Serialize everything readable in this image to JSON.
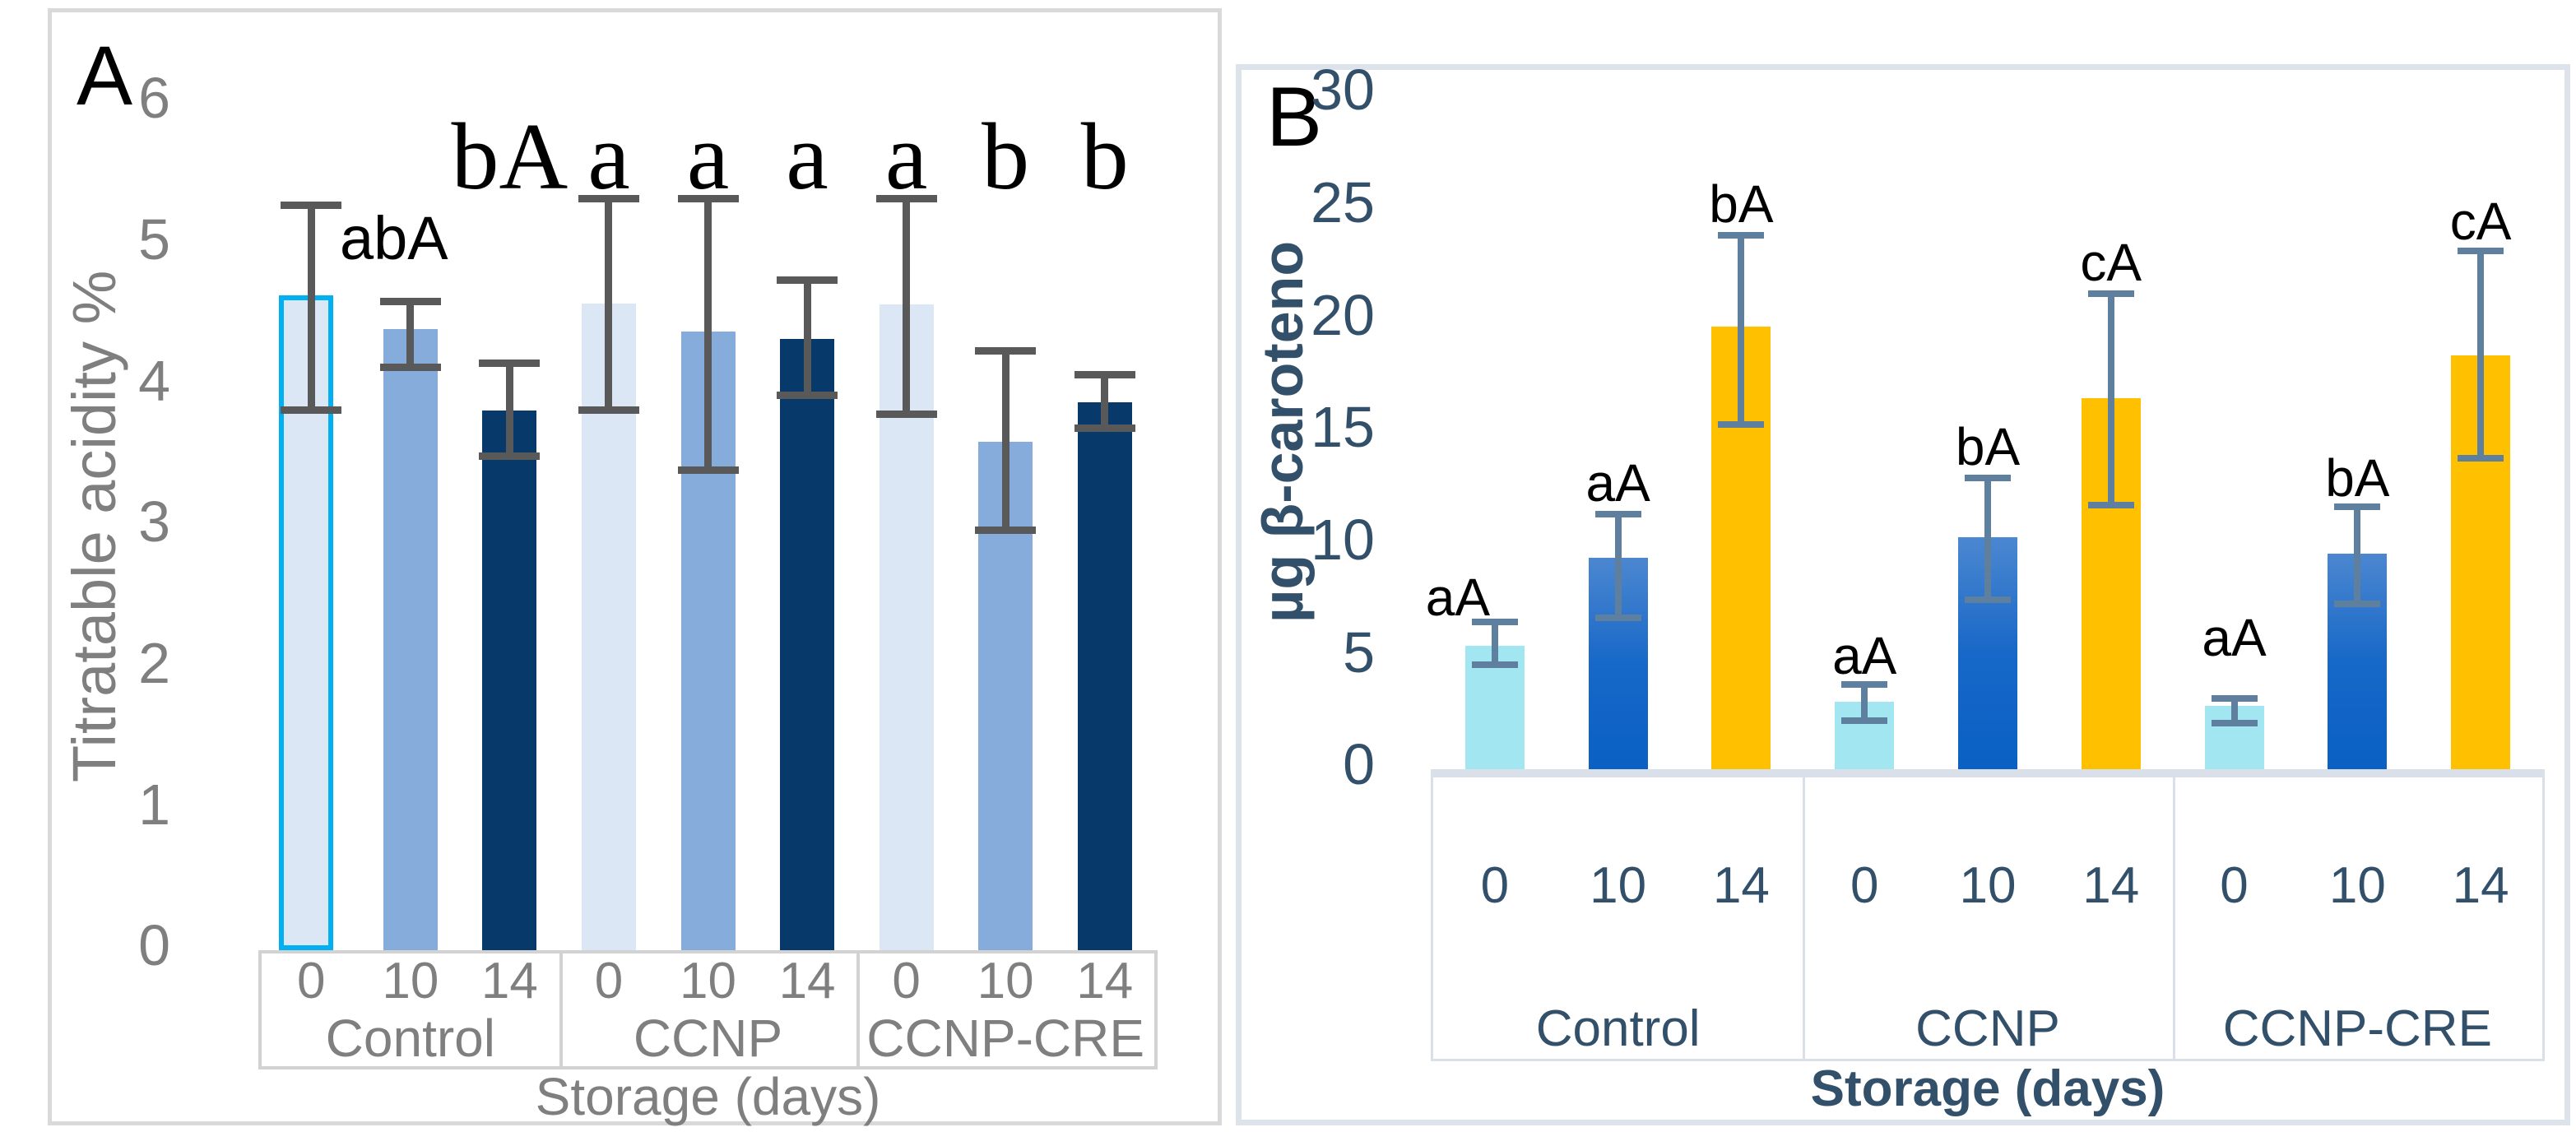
{
  "chart_data": [
    {
      "type": "bar",
      "panel_label": "A",
      "ylabel": "Titratable acidity %",
      "xlabel": "Storage (days)",
      "ylim": [
        0,
        6
      ],
      "yticks": [
        0,
        1,
        2,
        3,
        4,
        5,
        6
      ],
      "groups": [
        "Control",
        "CCNP",
        "CCNP-CRE"
      ],
      "categories": [
        "0",
        "10",
        "14"
      ],
      "legend": "none",
      "grid": false,
      "colors": {
        "bar_day0": "#DCE7F5",
        "bar_day10": "#86ACDC",
        "bar_day14": "#07396A",
        "highlight_outline": "#00B0F0",
        "error_bar": "#595959",
        "axis_text": "#7F7F7F",
        "panel_border": "#D9D9D9",
        "table_border": "#D2D2D2",
        "annotation_text": "#000000"
      },
      "bars": [
        {
          "group": "Control",
          "day": "0",
          "value": 4.6,
          "err_low": 3.8,
          "err_high": 5.3,
          "letter": "",
          "highlighted": true
        },
        {
          "group": "Control",
          "day": "10",
          "value": 4.4,
          "err_low": 4.1,
          "err_high": 4.62,
          "letter": "abA",
          "letter_y": 4.9,
          "letter_font": "sans",
          "dx": -20
        },
        {
          "group": "Control",
          "day": "14",
          "value": 3.82,
          "err_low": 3.47,
          "err_high": 4.18,
          "letter": "bA",
          "letter_y": 5.4,
          "letter_font": "serif"
        },
        {
          "group": "CCNP",
          "day": "0",
          "value": 4.58,
          "err_low": 3.8,
          "err_high": 5.35,
          "letter": "a",
          "letter_y": 5.4,
          "letter_font": "serif"
        },
        {
          "group": "CCNP",
          "day": "10",
          "value": 4.38,
          "err_low": 3.37,
          "err_high": 5.35,
          "letter": "a",
          "letter_y": 5.4,
          "letter_font": "serif"
        },
        {
          "group": "CCNP",
          "day": "14",
          "value": 4.33,
          "err_low": 3.9,
          "err_high": 4.77,
          "letter": "a",
          "letter_y": 5.4,
          "letter_font": "serif"
        },
        {
          "group": "CCNP-CRE",
          "day": "0",
          "value": 4.57,
          "err_low": 3.77,
          "err_high": 5.35,
          "letter": "a",
          "letter_y": 5.4,
          "letter_font": "serif"
        },
        {
          "group": "CCNP-CRE",
          "day": "10",
          "value": 3.6,
          "err_low": 2.95,
          "err_high": 4.27,
          "letter": "b",
          "letter_y": 5.4,
          "letter_font": "serif"
        },
        {
          "group": "CCNP-CRE",
          "day": "14",
          "value": 3.88,
          "err_low": 3.67,
          "err_high": 4.1,
          "letter": "b",
          "letter_y": 5.4,
          "letter_font": "serif"
        }
      ]
    },
    {
      "type": "bar",
      "panel_label": "B",
      "ylabel": "µg β-caroteno",
      "xlabel": "Storage (days)",
      "ylim": [
        0,
        30
      ],
      "yticks": [
        0,
        5,
        10,
        15,
        20,
        25,
        30
      ],
      "groups": [
        "Control",
        "CCNP",
        "CCNP-CRE"
      ],
      "categories": [
        "0",
        "10",
        "14"
      ],
      "legend": "none",
      "grid": false,
      "colors": {
        "bar_day0": "#A2E6F2",
        "bar_day10_gradient": [
          "#4C87D0",
          "#1768C8",
          "#0A60C4"
        ],
        "bar_day14": "#FFC000",
        "error_bar": "#5F7F9E",
        "axis_text": "#33506B",
        "panel_border": "#DCE3EB",
        "table_border": "#D9E0E9",
        "annotation_text": "#000000"
      },
      "bars": [
        {
          "group": "Control",
          "day": "0",
          "value": 5.5,
          "err_low": 4.5,
          "err_high": 6.7,
          "letter": "aA",
          "letter_y": 6.9,
          "dx": -45
        },
        {
          "group": "Control",
          "day": "10",
          "value": 9.4,
          "err_low": 6.6,
          "err_high": 11.5,
          "letter": "aA",
          "letter_y": 12.0
        },
        {
          "group": "Control",
          "day": "14",
          "value": 19.7,
          "err_low": 15.2,
          "err_high": 23.9,
          "letter": "bA",
          "letter_y": 24.4
        },
        {
          "group": "CCNP",
          "day": "0",
          "value": 3.0,
          "err_low": 2.0,
          "err_high": 3.9,
          "letter": "aA",
          "letter_y": 4.3
        },
        {
          "group": "CCNP",
          "day": "10",
          "value": 10.3,
          "err_low": 7.4,
          "err_high": 13.1,
          "letter": "bA",
          "letter_y": 13.6
        },
        {
          "group": "CCNP",
          "day": "14",
          "value": 16.5,
          "err_low": 11.6,
          "err_high": 21.3,
          "letter": "cA",
          "letter_y": 21.8
        },
        {
          "group": "CCNP-CRE",
          "day": "0",
          "value": 2.8,
          "err_low": 1.9,
          "err_high": 3.3,
          "letter": "aA",
          "letter_y": 5.1
        },
        {
          "group": "CCNP-CRE",
          "day": "10",
          "value": 9.6,
          "err_low": 7.2,
          "err_high": 11.8,
          "letter": "bA",
          "letter_y": 12.2
        },
        {
          "group": "CCNP-CRE",
          "day": "14",
          "value": 18.4,
          "err_low": 13.7,
          "err_high": 23.2,
          "letter": "cA",
          "letter_y": 23.6
        }
      ]
    }
  ]
}
